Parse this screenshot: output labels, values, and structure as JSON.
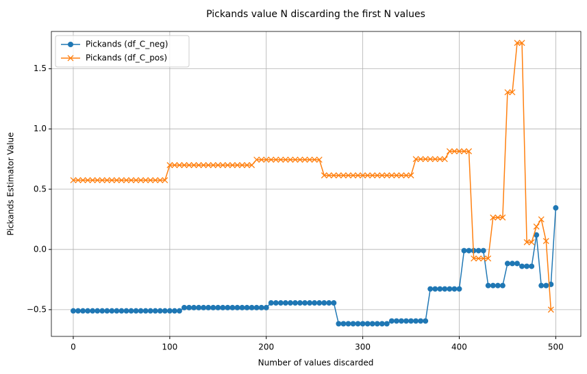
{
  "chart_data": {
    "type": "line",
    "title": "Pickands value N discarding the first N values",
    "x_label": "Number of values discarded",
    "y_label": "Pickands Estimator Value",
    "xlim": [
      -22.7,
      526
    ],
    "ylim": [
      -0.722,
      1.81
    ],
    "xticks": [
      0,
      100,
      200,
      300,
      400,
      500
    ],
    "yticks": [
      {
        "value": -0.5,
        "label": "−0.5"
      },
      {
        "value": 0,
        "label": "0.0"
      },
      0.5,
      {
        "value": 1,
        "label": "1.0"
      },
      1.5
    ],
    "grid": true,
    "legend": "upper left",
    "series": [
      {
        "name": "Pickands (df_C_neg)",
        "color": "#1f77b4",
        "marker": "o",
        "x": [
          0,
          5,
          10,
          15,
          20,
          25,
          30,
          35,
          40,
          45,
          50,
          55,
          60,
          65,
          70,
          75,
          80,
          85,
          90,
          95,
          100,
          105,
          110,
          115,
          120,
          125,
          130,
          135,
          140,
          145,
          150,
          155,
          160,
          165,
          170,
          175,
          180,
          185,
          190,
          195,
          200,
          205,
          210,
          215,
          220,
          225,
          230,
          235,
          240,
          245,
          250,
          255,
          260,
          265,
          270,
          275,
          280,
          285,
          290,
          295,
          300,
          305,
          310,
          315,
          320,
          325,
          330,
          335,
          340,
          345,
          350,
          355,
          360,
          365,
          370,
          375,
          380,
          385,
          390,
          395,
          400,
          405,
          410,
          415,
          420,
          425,
          430,
          435,
          440,
          445,
          450,
          455,
          460,
          465,
          470,
          475,
          480,
          485,
          490,
          495,
          500
        ],
        "values": [
          -0.51,
          -0.51,
          -0.51,
          -0.51,
          -0.51,
          -0.51,
          -0.51,
          -0.51,
          -0.51,
          -0.51,
          -0.51,
          -0.51,
          -0.51,
          -0.51,
          -0.51,
          -0.51,
          -0.51,
          -0.51,
          -0.51,
          -0.51,
          -0.51,
          -0.51,
          -0.51,
          -0.483,
          -0.483,
          -0.483,
          -0.483,
          -0.483,
          -0.483,
          -0.483,
          -0.483,
          -0.483,
          -0.483,
          -0.483,
          -0.483,
          -0.483,
          -0.483,
          -0.483,
          -0.483,
          -0.483,
          -0.483,
          -0.444,
          -0.444,
          -0.444,
          -0.444,
          -0.444,
          -0.444,
          -0.444,
          -0.444,
          -0.444,
          -0.444,
          -0.444,
          -0.444,
          -0.444,
          -0.444,
          -0.617,
          -0.617,
          -0.617,
          -0.617,
          -0.617,
          -0.617,
          -0.617,
          -0.617,
          -0.617,
          -0.617,
          -0.617,
          -0.594,
          -0.594,
          -0.594,
          -0.594,
          -0.594,
          -0.594,
          -0.594,
          -0.594,
          -0.328,
          -0.328,
          -0.328,
          -0.328,
          -0.328,
          -0.328,
          -0.328,
          -0.01,
          -0.01,
          -0.01,
          -0.01,
          -0.01,
          -0.3,
          -0.3,
          -0.3,
          -0.3,
          -0.117,
          -0.117,
          -0.117,
          -0.14,
          -0.14,
          -0.14,
          0.12,
          -0.3,
          -0.3,
          -0.29,
          0.345
        ]
      },
      {
        "name": "Pickands (df_C_pos)",
        "color": "#ff7f0e",
        "marker": "x",
        "x": [
          0,
          5,
          10,
          15,
          20,
          25,
          30,
          35,
          40,
          45,
          50,
          55,
          60,
          65,
          70,
          75,
          80,
          85,
          90,
          95,
          100,
          105,
          110,
          115,
          120,
          125,
          130,
          135,
          140,
          145,
          150,
          155,
          160,
          165,
          170,
          175,
          180,
          185,
          190,
          195,
          200,
          205,
          210,
          215,
          220,
          225,
          230,
          235,
          240,
          245,
          250,
          255,
          260,
          265,
          270,
          275,
          280,
          285,
          290,
          295,
          300,
          305,
          310,
          315,
          320,
          325,
          330,
          335,
          340,
          345,
          350,
          355,
          360,
          365,
          370,
          375,
          380,
          385,
          390,
          395,
          400,
          405,
          410,
          415,
          420,
          425,
          430,
          435,
          440,
          445,
          450,
          455,
          460,
          465,
          470,
          475,
          480,
          485,
          490,
          495
        ],
        "values": [
          0.575,
          0.575,
          0.575,
          0.575,
          0.575,
          0.575,
          0.575,
          0.575,
          0.575,
          0.575,
          0.575,
          0.575,
          0.575,
          0.575,
          0.575,
          0.575,
          0.575,
          0.575,
          0.575,
          0.575,
          0.7,
          0.7,
          0.7,
          0.7,
          0.7,
          0.7,
          0.7,
          0.7,
          0.7,
          0.7,
          0.7,
          0.7,
          0.7,
          0.7,
          0.7,
          0.7,
          0.7,
          0.7,
          0.745,
          0.745,
          0.745,
          0.745,
          0.745,
          0.745,
          0.745,
          0.745,
          0.745,
          0.745,
          0.745,
          0.745,
          0.745,
          0.745,
          0.615,
          0.615,
          0.615,
          0.615,
          0.615,
          0.615,
          0.615,
          0.615,
          0.615,
          0.615,
          0.615,
          0.615,
          0.615,
          0.615,
          0.615,
          0.615,
          0.615,
          0.615,
          0.615,
          0.75,
          0.75,
          0.75,
          0.75,
          0.75,
          0.75,
          0.75,
          0.815,
          0.815,
          0.815,
          0.815,
          0.815,
          -0.075,
          -0.075,
          -0.075,
          -0.075,
          0.265,
          0.265,
          0.265,
          1.305,
          1.305,
          1.715,
          1.715,
          0.06,
          0.06,
          0.19,
          0.25,
          0.07,
          -0.5
        ]
      }
    ]
  }
}
